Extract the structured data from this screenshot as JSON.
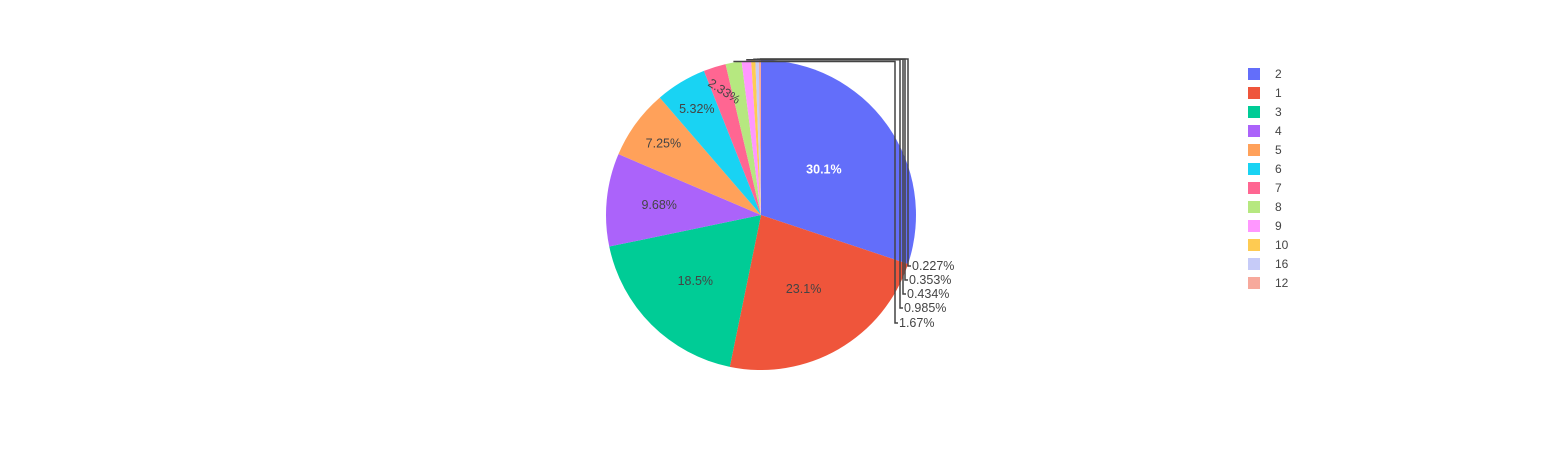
{
  "chart_data": {
    "type": "pie",
    "title": "",
    "labels": [
      "2",
      "1",
      "3",
      "4",
      "5",
      "6",
      "7",
      "8",
      "9",
      "10",
      "16",
      "12"
    ],
    "percent_labels": [
      "30.1%",
      "23.1%",
      "18.5%",
      "9.68%",
      "7.25%",
      "5.32%",
      "2.33%",
      "1.67%",
      "0.985%",
      "0.434%",
      "0.353%",
      "0.227%"
    ],
    "values": [
      30.1,
      23.1,
      18.5,
      9.68,
      7.25,
      5.32,
      2.33,
      1.67,
      0.985,
      0.434,
      0.353,
      0.227
    ],
    "colors": [
      "#636efa",
      "#EF553B",
      "#00cc96",
      "#ab63fa",
      "#FFA15A",
      "#19d3f3",
      "#FF6692",
      "#B6E880",
      "#FF97FF",
      "#FECB52",
      "#c6cbf8",
      "#f7a99c"
    ],
    "text_colors": [
      "#ffffff",
      "#444444",
      "#444444",
      "#444444",
      "#444444",
      "#444444",
      "#444444",
      "#444444",
      "#444444",
      "#444444",
      "#444444",
      "#444444"
    ],
    "sort": "descending",
    "direction": "clockwise",
    "start_angle_deg": 90,
    "legend_position": "top-right",
    "legend_entries": [
      "2",
      "1",
      "3",
      "4",
      "5",
      "6",
      "7",
      "8",
      "9",
      "10",
      "16",
      "12"
    ]
  }
}
